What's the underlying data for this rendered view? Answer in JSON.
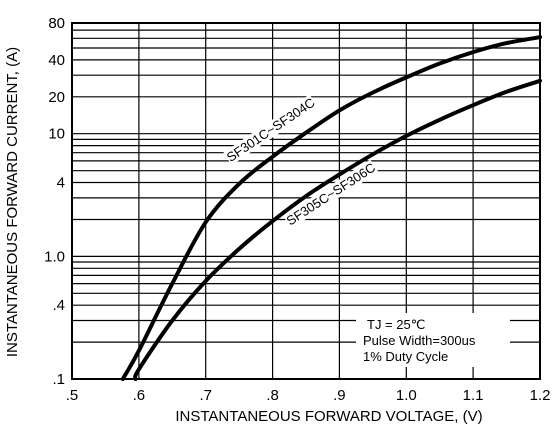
{
  "chart_data": {
    "type": "line",
    "xlabel": "INSTANTANEOUS FORWARD VOLTAGE, (V)",
    "ylabel": "INSTANTANEOUS FORWARD CURRENT, (A)",
    "xlim": [
      0.5,
      1.2
    ],
    "ylim": [
      0.1,
      80
    ],
    "y_scale": "log",
    "grid": true,
    "x_ticks": [
      {
        "value": 0.5,
        "label": ".5"
      },
      {
        "value": 0.6,
        "label": ".6"
      },
      {
        "value": 0.7,
        "label": ".7"
      },
      {
        "value": 0.8,
        "label": ".8"
      },
      {
        "value": 0.9,
        "label": ".9"
      },
      {
        "value": 1.0,
        "label": "1.0"
      },
      {
        "value": 1.1,
        "label": "1.1"
      },
      {
        "value": 1.2,
        "label": "1.2"
      }
    ],
    "y_ticks": [
      {
        "value": 0.1,
        "label": ".1"
      },
      {
        "value": 0.4,
        "label": ".4"
      },
      {
        "value": 1.0,
        "label": "1.0"
      },
      {
        "value": 4,
        "label": "4"
      },
      {
        "value": 10,
        "label": "10"
      },
      {
        "value": 20,
        "label": "20"
      },
      {
        "value": 40,
        "label": "40"
      },
      {
        "value": 80,
        "label": "80"
      }
    ],
    "y_gridlines": [
      0.1,
      0.2,
      0.3,
      0.4,
      0.5,
      0.6,
      0.7,
      0.8,
      0.9,
      1,
      2,
      3,
      4,
      5,
      6,
      7,
      8,
      9,
      10,
      20,
      30,
      40,
      50,
      60,
      70,
      80
    ],
    "series": [
      {
        "name": "SF301C~SF304C",
        "x": [
          0.576,
          0.6,
          0.65,
          0.7,
          0.75,
          0.8,
          0.85,
          0.9,
          0.95,
          1.0,
          1.05,
          1.1,
          1.15,
          1.2
        ],
        "y": [
          0.1,
          0.17,
          0.6,
          1.9,
          3.9,
          6.5,
          10.2,
          15.5,
          21.7,
          28.8,
          37.4,
          46.3,
          54.9,
          61.3
        ]
      },
      {
        "name": "SF305C~SF306C",
        "x": [
          0.595,
          0.6,
          0.65,
          0.7,
          0.75,
          0.8,
          0.85,
          0.9,
          0.95,
          1.0,
          1.05,
          1.1,
          1.15,
          1.2
        ],
        "y": [
          0.1,
          0.12,
          0.3,
          0.63,
          1.15,
          1.94,
          3.1,
          4.65,
          6.8,
          9.6,
          13.0,
          17.1,
          22.0,
          27.0
        ]
      }
    ],
    "annotations": [
      "TJ = 25℃",
      "Pulse Width=300us",
      "1% Duty Cycle"
    ]
  }
}
